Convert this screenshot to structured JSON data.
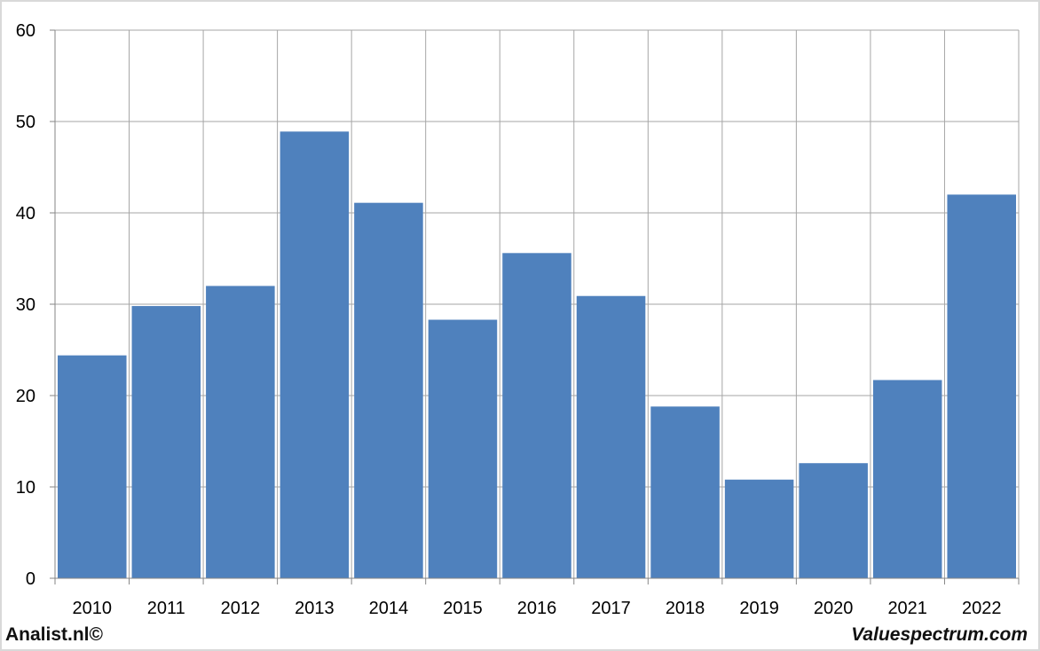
{
  "chart_data": {
    "type": "bar",
    "categories": [
      "2010",
      "2011",
      "2012",
      "2013",
      "2014",
      "2015",
      "2016",
      "2017",
      "2018",
      "2019",
      "2020",
      "2021",
      "2022"
    ],
    "values": [
      24.4,
      29.8,
      32.0,
      48.9,
      41.1,
      28.3,
      35.6,
      30.9,
      18.8,
      10.8,
      12.6,
      21.7,
      42.0
    ],
    "ylim": [
      0,
      60
    ],
    "yticks": [
      0,
      10,
      20,
      30,
      40,
      50,
      60
    ],
    "grid": true,
    "title": "",
    "xlabel": "",
    "ylabel": "",
    "bar_color": "#4f81bd",
    "grid_color": "#a6a6a6"
  },
  "footer": {
    "left_text": "Analist.nl©",
    "right_text": "Valuespectrum.com"
  }
}
